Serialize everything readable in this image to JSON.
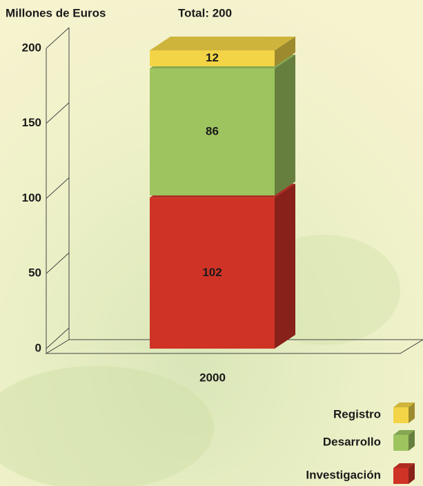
{
  "chart_data": {
    "type": "bar",
    "stacked": true,
    "y_label": "Millones de Euros",
    "annotation": "Total: 200",
    "categories": [
      "2000"
    ],
    "series": [
      {
        "name": "Investigación",
        "color": "#cf3326",
        "values": [
          102
        ]
      },
      {
        "name": "Desarrollo",
        "color": "#9dc45f",
        "values": [
          86
        ]
      },
      {
        "name": "Registro",
        "color": "#f3d447",
        "values": [
          12
        ]
      }
    ],
    "ylim": [
      0,
      200
    ],
    "yticks": [
      0,
      50,
      100,
      150,
      200
    ]
  }
}
